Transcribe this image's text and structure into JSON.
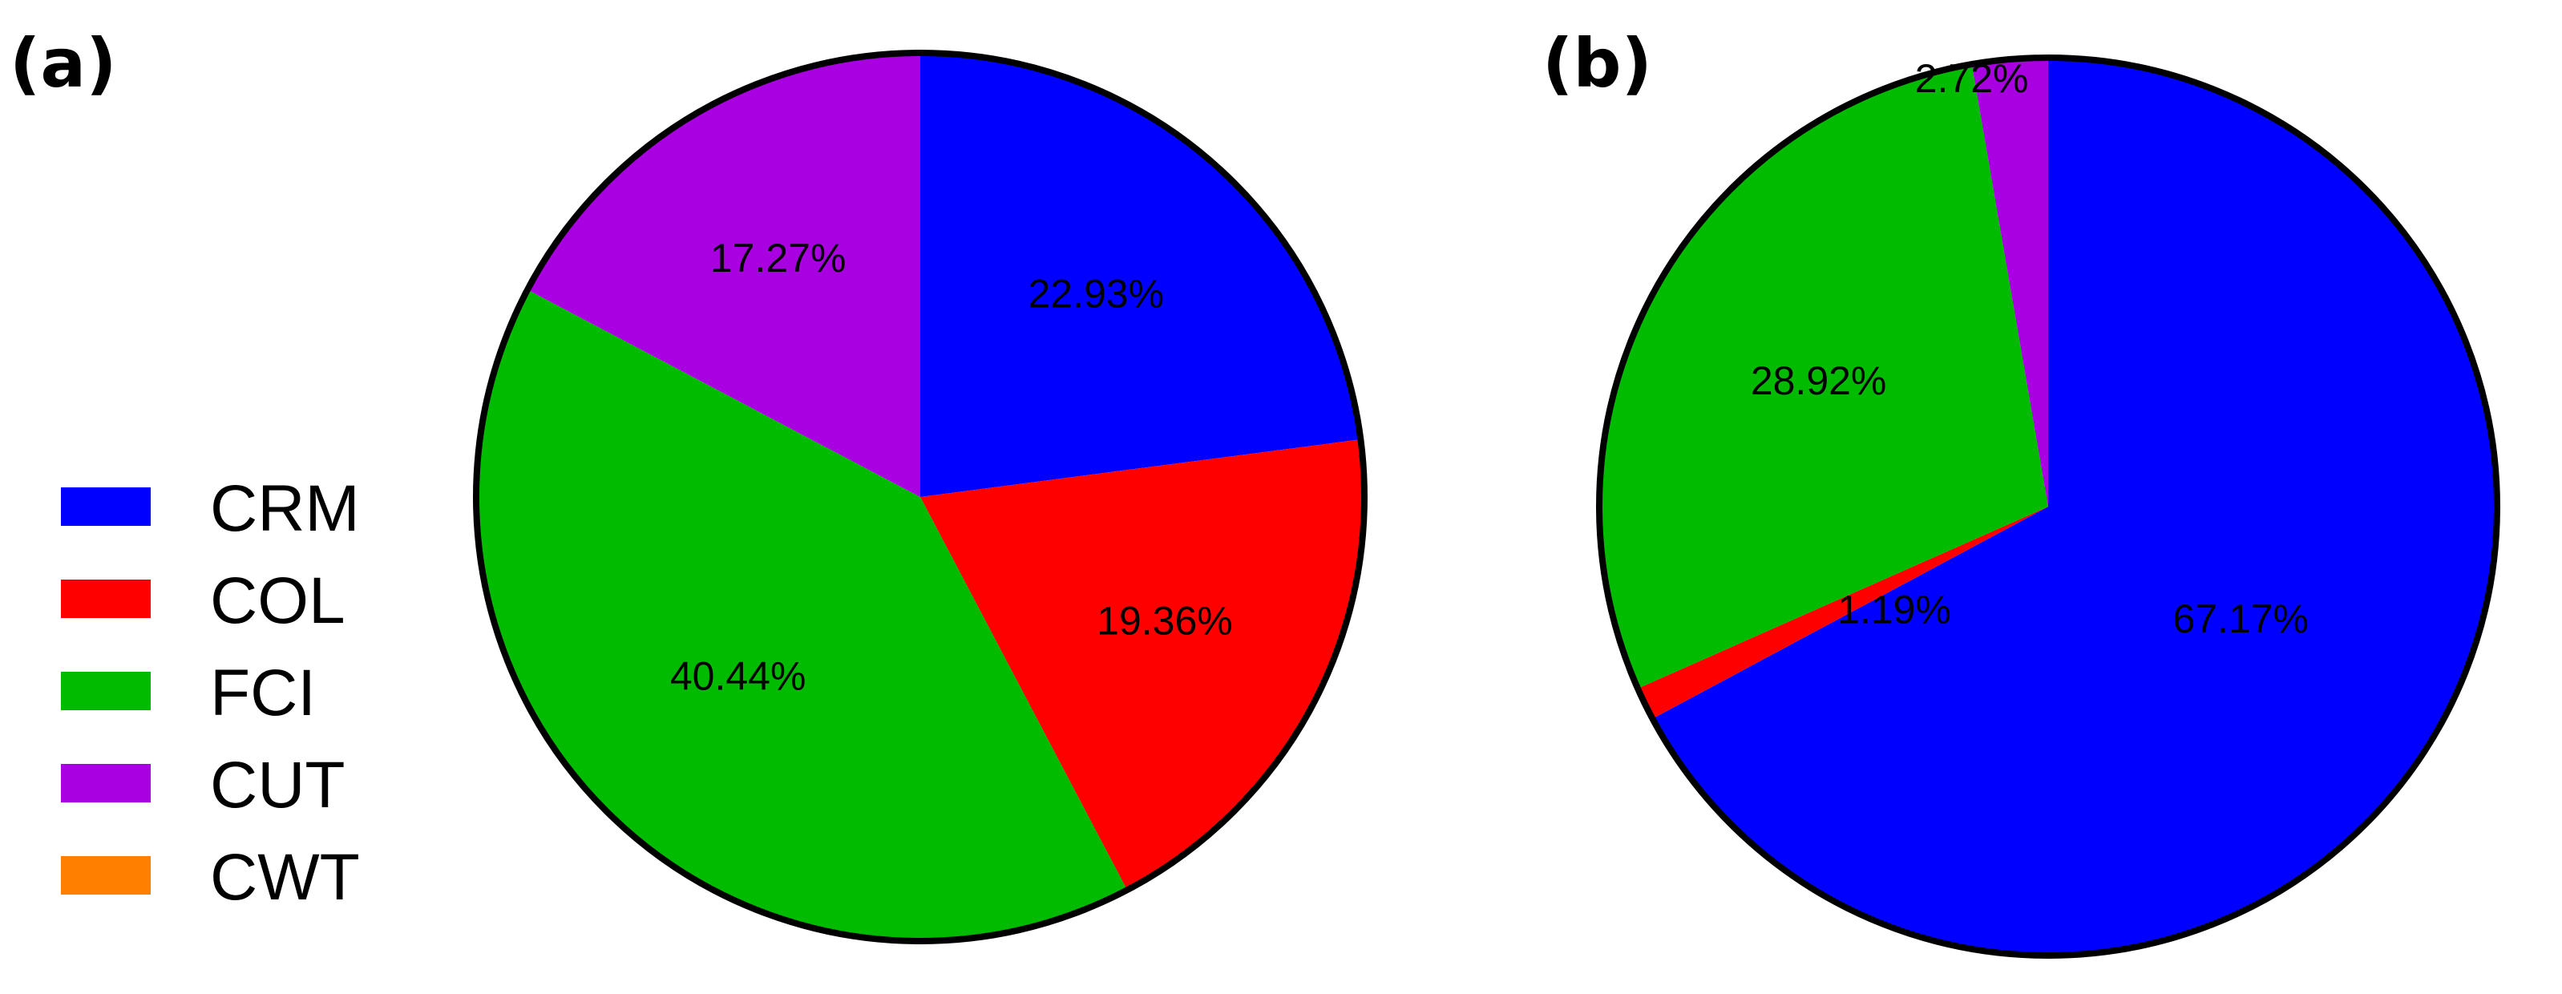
{
  "chart_data": [
    {
      "type": "pie",
      "panel_label": "(a)",
      "slices": [
        {
          "name": "CRM",
          "value": 22.93,
          "label": "22.93%",
          "color": "#0000ff"
        },
        {
          "name": "COL",
          "value": 19.36,
          "label": "19.36%",
          "color": "#ff0000"
        },
        {
          "name": "FCI",
          "value": 40.44,
          "label": "40.44%",
          "color": "#00bb00"
        },
        {
          "name": "CUT",
          "value": 17.27,
          "label": "17.27%",
          "color": "#a800e0"
        },
        {
          "name": "CWT",
          "value": 0,
          "label": "",
          "color": "#ff8000"
        }
      ]
    },
    {
      "type": "pie",
      "panel_label": "(b)",
      "slices": [
        {
          "name": "CRM",
          "value": 67.17,
          "label": "67.17%",
          "color": "#0000ff"
        },
        {
          "name": "COL",
          "value": 1.19,
          "label": "1.19%",
          "color": "#ff0000"
        },
        {
          "name": "FCI",
          "value": 28.92,
          "label": "28.92%",
          "color": "#00bb00"
        },
        {
          "name": "CUT",
          "value": 2.72,
          "label": "2.72%",
          "color": "#a800e0"
        },
        {
          "name": "CWT",
          "value": 0,
          "label": "",
          "color": "#ff8000"
        }
      ]
    }
  ],
  "legend": {
    "placement": "left",
    "items": [
      {
        "label": "CRM",
        "color": "#0000ff"
      },
      {
        "label": "COL",
        "color": "#ff0000"
      },
      {
        "label": "FCI",
        "color": "#00bb00"
      },
      {
        "label": "CUT",
        "color": "#a800e0"
      },
      {
        "label": "CWT",
        "color": "#ff8000"
      }
    ]
  }
}
